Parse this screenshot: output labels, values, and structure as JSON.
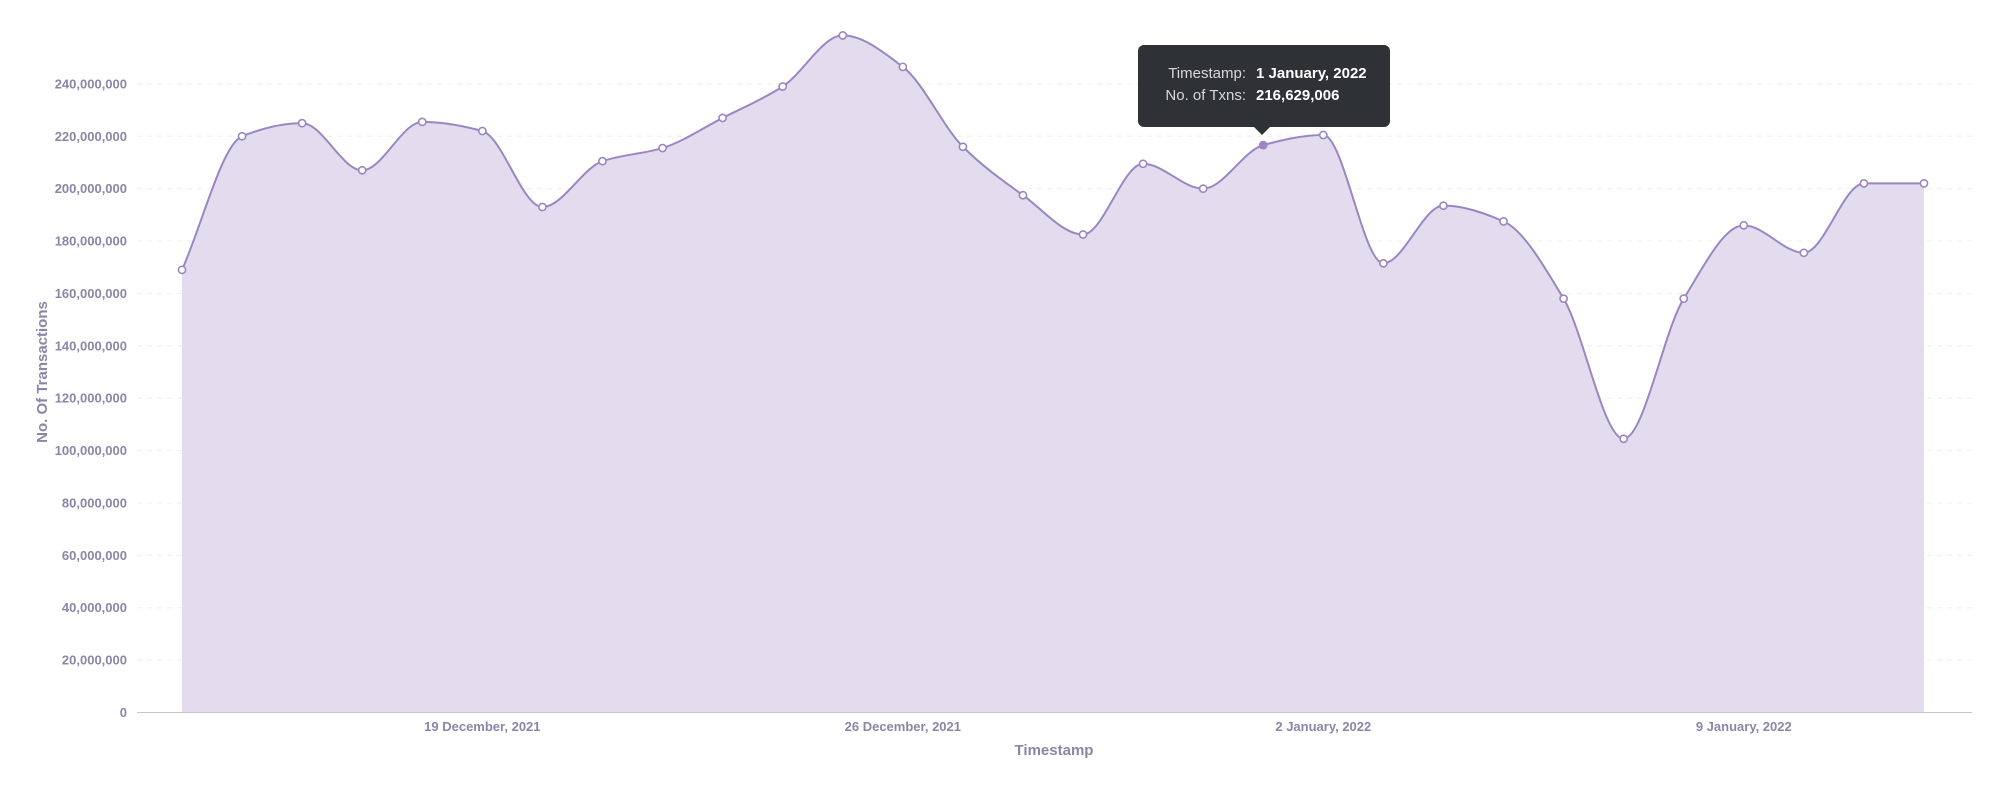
{
  "chart_data": {
    "type": "area",
    "xlabel": "Timestamp",
    "ylabel": "No. Of Transactions",
    "ylim": [
      0,
      260000000
    ],
    "yticks": [
      0,
      20000000,
      40000000,
      60000000,
      80000000,
      100000000,
      120000000,
      140000000,
      160000000,
      180000000,
      200000000,
      220000000,
      240000000
    ],
    "ytick_labels": [
      "0",
      "20,000,000",
      "40,000,000",
      "60,000,000",
      "80,000,000",
      "100,000,000",
      "120,000,000",
      "140,000,000",
      "160,000,000",
      "180,000,000",
      "200,000,000",
      "220,000,000",
      "240,000,000"
    ],
    "x_ticks": [
      {
        "label": "19 December, 2021",
        "date": "2021-12-19"
      },
      {
        "label": "26 December, 2021",
        "date": "2021-12-26"
      },
      {
        "label": "2 January, 2022",
        "date": "2022-01-02"
      },
      {
        "label": "9 January, 2022",
        "date": "2022-01-09"
      }
    ],
    "grid": true,
    "series": [
      {
        "color": "#9b86c2",
        "fill": "#e3dcee",
        "points": [
          {
            "x": "2021-12-14",
            "y": 169000000
          },
          {
            "x": "2021-12-15",
            "y": 220000000
          },
          {
            "x": "2021-12-16",
            "y": 225000000
          },
          {
            "x": "2021-12-17",
            "y": 207000000
          },
          {
            "x": "2021-12-18",
            "y": 225500000
          },
          {
            "x": "2021-12-19",
            "y": 222000000
          },
          {
            "x": "2021-12-20",
            "y": 193000000
          },
          {
            "x": "2021-12-21",
            "y": 210500000
          },
          {
            "x": "2021-12-22",
            "y": 215500000
          },
          {
            "x": "2021-12-23",
            "y": 227000000
          },
          {
            "x": "2021-12-24",
            "y": 239000000
          },
          {
            "x": "2021-12-25",
            "y": 258500000
          },
          {
            "x": "2021-12-26",
            "y": 246500000
          },
          {
            "x": "2021-12-27",
            "y": 216000000
          },
          {
            "x": "2021-12-28",
            "y": 197500000
          },
          {
            "x": "2021-12-29",
            "y": 182500000
          },
          {
            "x": "2021-12-30",
            "y": 209500000
          },
          {
            "x": "2021-12-31",
            "y": 200000000
          },
          {
            "x": "2022-01-01",
            "y": 216629006
          },
          {
            "x": "2022-01-02",
            "y": 220500000
          },
          {
            "x": "2022-01-03",
            "y": 171500000
          },
          {
            "x": "2022-01-04",
            "y": 193500000
          },
          {
            "x": "2022-01-05",
            "y": 187500000
          },
          {
            "x": "2022-01-06",
            "y": 158000000
          },
          {
            "x": "2022-01-07",
            "y": 104500000
          },
          {
            "x": "2022-01-08",
            "y": 158000000
          },
          {
            "x": "2022-01-09",
            "y": 186000000
          },
          {
            "x": "2022-01-10",
            "y": 175500000
          },
          {
            "x": "2022-01-11",
            "y": 202000000
          },
          {
            "x": "2022-01-12",
            "y": 202000000
          }
        ]
      }
    ]
  },
  "tooltip": {
    "timestamp_label": "Timestamp:",
    "timestamp_value": "1 January, 2022",
    "txns_label": "No. of Txns:",
    "txns_value": "216,629,006",
    "hover_x": "2022-01-01"
  }
}
